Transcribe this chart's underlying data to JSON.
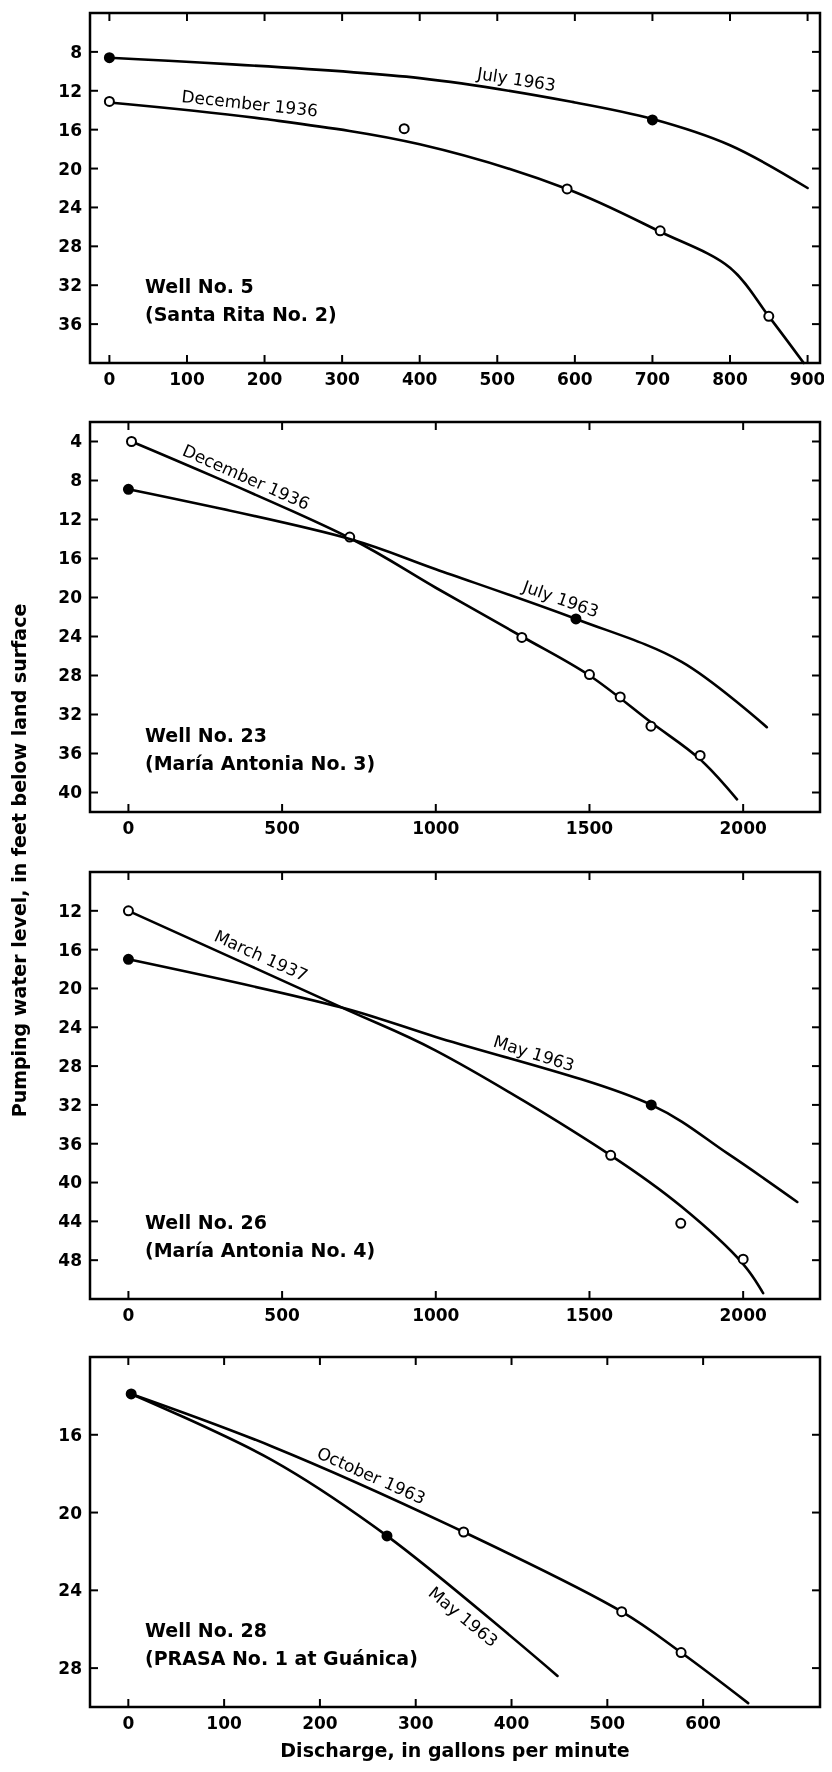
{
  "chart_data": [
    {
      "type": "line",
      "xlim": [
        -25,
        916
      ],
      "xticks": [
        0,
        100,
        200,
        300,
        400,
        500,
        600,
        700,
        800,
        900
      ],
      "ylim": [
        40,
        4
      ],
      "yticks": [
        8,
        12,
        16,
        20,
        24,
        28,
        32,
        36
      ],
      "grid": false,
      "annotations": [
        "Well No. 5",
        "(Santa Rita No. 2)"
      ],
      "series": [
        {
          "name": "July 1963",
          "marker": "none",
          "color": "#000000",
          "x": [
            0,
            400,
            600,
            700,
            800,
            900
          ],
          "values": [
            8.6,
            10.7,
            13.2,
            14.9,
            17.6,
            22.0
          ]
        },
        {
          "type": "scatter",
          "marker": "circle",
          "color": "#000000",
          "x": [
            0,
            700
          ],
          "values": [
            8.6,
            15.0
          ]
        },
        {
          "name": "December 1936",
          "marker": "none",
          "color": "#000000",
          "x": [
            0,
            200,
            400,
            590,
            710,
            800,
            850,
            895
          ],
          "values": [
            13.2,
            14.9,
            17.5,
            22.1,
            26.5,
            30.2,
            35.2,
            40
          ]
        },
        {
          "type": "scatter",
          "marker": "circle",
          "color": "#ffffff",
          "x": [
            0,
            380,
            590,
            710,
            850
          ],
          "values": [
            13.1,
            15.9,
            22.1,
            26.4,
            35.2
          ]
        }
      ]
    },
    {
      "type": "line",
      "xlim": [
        -125,
        2250
      ],
      "xticks": [
        0,
        500,
        1000,
        1500,
        2000
      ],
      "ylim": [
        42,
        2
      ],
      "yticks": [
        4,
        8,
        12,
        16,
        20,
        24,
        28,
        32,
        36,
        40
      ],
      "grid": false,
      "ylabel": "Pumping water level, in feet below land surface",
      "annotations": [
        "Well No. 23",
        "(María Antonia No. 3)"
      ],
      "series": [
        {
          "name": "December 1936",
          "marker": "none",
          "color": "#000000",
          "x": [
            10,
            720,
            1000,
            1280,
            1500,
            1700,
            1860,
            1980
          ],
          "values": [
            4.0,
            13.9,
            19.0,
            24.0,
            28.0,
            32.8,
            36.6,
            40.7
          ]
        },
        {
          "type": "scatter",
          "marker": "circle",
          "color": "#ffffff",
          "x": [
            10,
            720,
            1280,
            1500,
            1600,
            1700,
            1860
          ],
          "values": [
            4.0,
            13.8,
            24.1,
            27.9,
            30.2,
            33.2,
            36.2
          ]
        },
        {
          "name": "July 1963",
          "marker": "none",
          "color": "#000000",
          "x": [
            0,
            720,
            1000,
            1456,
            1800,
            2077
          ],
          "values": [
            8.9,
            14.0,
            17.1,
            22.2,
            26.6,
            33.3
          ]
        },
        {
          "type": "scatter",
          "marker": "circle",
          "color": "#000000",
          "x": [
            0,
            1456
          ],
          "values": [
            8.9,
            22.2
          ]
        }
      ]
    },
    {
      "type": "line",
      "xlim": [
        -125,
        2250
      ],
      "xticks": [
        0,
        500,
        1000,
        1500,
        2000
      ],
      "ylim": [
        52,
        8
      ],
      "yticks": [
        12,
        16,
        20,
        24,
        28,
        32,
        36,
        40,
        44,
        48
      ],
      "grid": false,
      "annotations": [
        "Well No. 26",
        "(María Antonia No. 4)"
      ],
      "series": [
        {
          "name": "March 1937",
          "marker": "none",
          "color": "#000000",
          "x": [
            0,
            697,
            1000,
            1569,
            1800,
            2000,
            2065
          ],
          "values": [
            12.0,
            22.0,
            26.4,
            37.2,
            42.5,
            48.4,
            51.4
          ]
        },
        {
          "type": "scatter",
          "marker": "circle",
          "color": "#ffffff",
          "x": [
            0,
            1569,
            1797,
            2000
          ],
          "values": [
            12.0,
            37.2,
            44.2,
            47.9
          ]
        },
        {
          "name": "May 1963",
          "marker": "none",
          "color": "#000000",
          "x": [
            0,
            697,
            1000,
            1701,
            1949,
            2176
          ],
          "values": [
            17.0,
            22.0,
            25.0,
            32.0,
            37.0,
            42.0
          ]
        },
        {
          "type": "scatter",
          "marker": "circle",
          "color": "#000000",
          "x": [
            0,
            1701
          ],
          "values": [
            17.0,
            32.0
          ]
        }
      ]
    },
    {
      "type": "line",
      "xlim": [
        -40,
        722
      ],
      "xticks": [
        0,
        100,
        200,
        300,
        400,
        500,
        600
      ],
      "ylim": [
        30,
        12
      ],
      "yticks": [
        16,
        20,
        24,
        28
      ],
      "grid": false,
      "xlabel": "Discharge, in gallons per minute",
      "annotations": [
        "Well No. 28",
        "(PRASA No. 1 at Guánica)"
      ],
      "series": [
        {
          "name": "October 1963",
          "marker": "none",
          "color": "#000000",
          "x": [
            3,
            150,
            350,
            515,
            577,
            647
          ],
          "values": [
            13.9,
            16.6,
            21.0,
            25.1,
            27.2,
            29.8
          ]
        },
        {
          "type": "scatter",
          "marker": "circle",
          "color": "#ffffff",
          "x": [
            350,
            515,
            577
          ],
          "values": [
            21.0,
            25.1,
            27.2
          ]
        },
        {
          "name": "May 1963",
          "marker": "none",
          "color": "#000000",
          "x": [
            3,
            150,
            270,
            448
          ],
          "values": [
            13.9,
            17.3,
            21.2,
            28.4
          ]
        },
        {
          "type": "scatter",
          "marker": "circle",
          "color": "#000000",
          "x": [
            3,
            270
          ],
          "values": [
            13.9,
            21.2
          ]
        }
      ]
    }
  ]
}
